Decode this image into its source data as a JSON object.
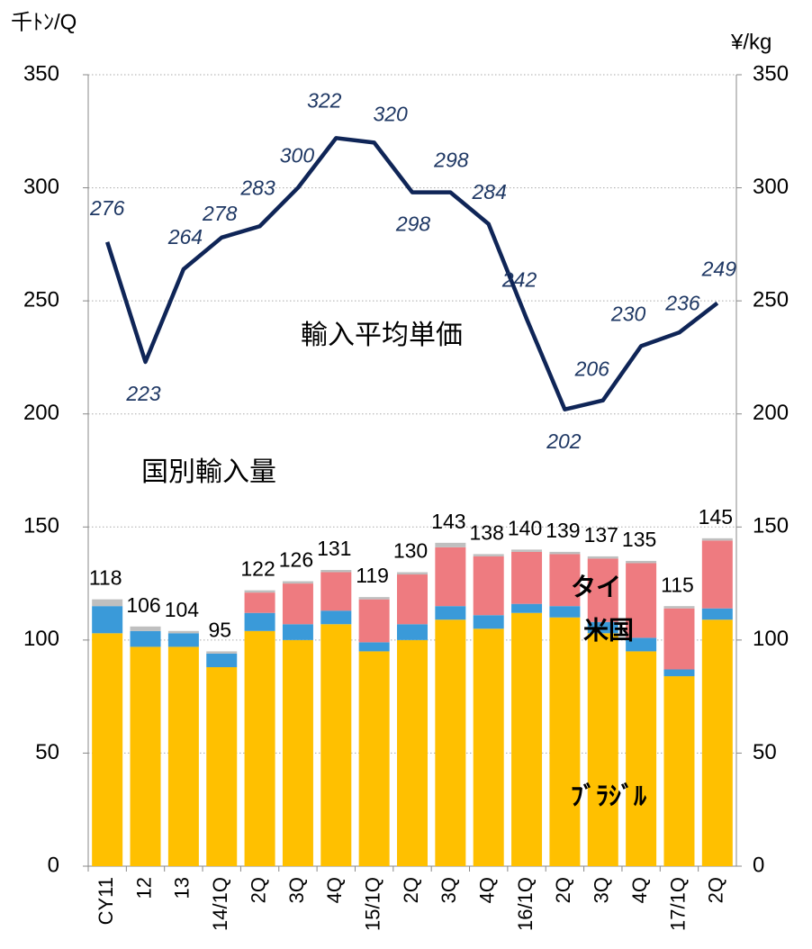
{
  "chart_data": {
    "type": "bar-line",
    "y_label": "千ﾄﾝ/Q",
    "y2_label": "¥/kg",
    "annotations": [
      "輸入平均単価",
      "国別輸入量"
    ],
    "categories": [
      "CY11",
      "12",
      "13",
      "14/1Q",
      "2Q",
      "3Q",
      "4Q",
      "15/1Q",
      "2Q",
      "3Q",
      "4Q",
      "16/1Q",
      "2Q",
      "3Q",
      "4Q",
      "17/1Q",
      "2Q"
    ],
    "series": [
      {
        "name": "ﾌﾞﾗｼﾞﾙ",
        "color": "#ffc000",
        "values": [
          103,
          97,
          97,
          88,
          104,
          100,
          107,
          95,
          100,
          109,
          105,
          112,
          110,
          103,
          95,
          84,
          109
        ]
      },
      {
        "name": "米国",
        "color": "#3a9ad9",
        "values": [
          12,
          7,
          6,
          6,
          8,
          7,
          6,
          4,
          7,
          6,
          6,
          4,
          5,
          5,
          6,
          3,
          5
        ]
      },
      {
        "name": "タイ",
        "color": "#ee7b80",
        "values": [
          0,
          0,
          0,
          0,
          9,
          18,
          17,
          19,
          22,
          26,
          26,
          23,
          23,
          28,
          33,
          27,
          30
        ]
      },
      {
        "color": "#bfbfbf",
        "values": [
          3,
          2,
          1,
          1,
          1,
          1,
          1,
          1,
          1,
          2,
          1,
          1,
          1,
          1,
          1,
          1,
          1
        ]
      },
      {
        "name": "輸入平均単価",
        "color": "#0f2557",
        "axis": "y2",
        "values": [
          276,
          223,
          264,
          278,
          283,
          300,
          322,
          320,
          298,
          298,
          284,
          242,
          202,
          206,
          230,
          236,
          249
        ]
      }
    ],
    "totals": [
      118,
      106,
      104,
      95,
      122,
      126,
      131,
      119,
      130,
      143,
      138,
      140,
      139,
      137,
      135,
      115,
      145
    ],
    "ylim": [
      0,
      350
    ],
    "yticks": [
      0,
      50,
      100,
      150,
      200,
      250,
      300,
      350
    ],
    "y2lim": [
      0,
      350
    ],
    "y2ticks": [
      0,
      50,
      100,
      150,
      200,
      250,
      300,
      350
    ],
    "grid": true
  }
}
